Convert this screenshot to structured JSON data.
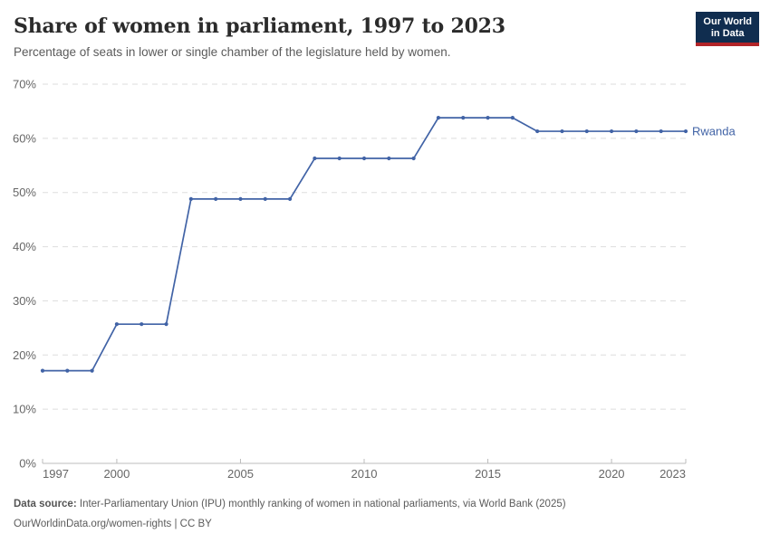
{
  "header": {
    "title": "Share of women in parliament, 1997 to 2023",
    "subtitle": "Percentage of seats in lower or single chamber of the legislature held by women.",
    "logo": {
      "line1": "Our World",
      "line2": "in Data"
    }
  },
  "chart_data": {
    "type": "line",
    "title": "Share of women in parliament, 1997 to 2023",
    "xlabel": "",
    "ylabel": "",
    "x": [
      1997,
      1998,
      1999,
      2000,
      2001,
      2002,
      2003,
      2004,
      2005,
      2006,
      2007,
      2008,
      2009,
      2010,
      2011,
      2012,
      2013,
      2014,
      2015,
      2016,
      2017,
      2018,
      2019,
      2020,
      2021,
      2022,
      2023
    ],
    "series": [
      {
        "name": "Rwanda",
        "color": "#4163a6",
        "values": [
          17.1,
          17.1,
          17.1,
          25.7,
          25.7,
          25.7,
          48.8,
          48.8,
          48.8,
          48.8,
          48.8,
          56.3,
          56.3,
          56.3,
          56.3,
          56.3,
          63.8,
          63.8,
          63.8,
          63.8,
          61.3,
          61.3,
          61.3,
          61.3,
          61.3,
          61.3,
          61.3
        ]
      }
    ],
    "xlim": [
      1997,
      2023
    ],
    "ylim": [
      0,
      70
    ],
    "xticks": [
      1997,
      2000,
      2005,
      2010,
      2015,
      2020,
      2023
    ],
    "yticks": [
      0,
      10,
      20,
      30,
      40,
      50,
      60,
      70
    ],
    "ytick_suffix": "%",
    "grid": "horizontal-dashed",
    "legend_position": "line-end-label",
    "end_label": "Rwanda"
  },
  "footer": {
    "source_label": "Data source:",
    "source_text": "Inter-Parliamentary Union (IPU) monthly ranking of women in national parliaments, via World Bank (2025)",
    "license_text": "OurWorldinData.org/women-rights | CC BY"
  },
  "colors": {
    "line": "#4163a6",
    "grid": "#dddddd",
    "axis": "#bcbcbc",
    "tick_label": "#666666",
    "title": "#2b2b2b",
    "subtitle": "#5b5b5b",
    "logo_bg": "#102d4f",
    "logo_red": "#b22428"
  }
}
